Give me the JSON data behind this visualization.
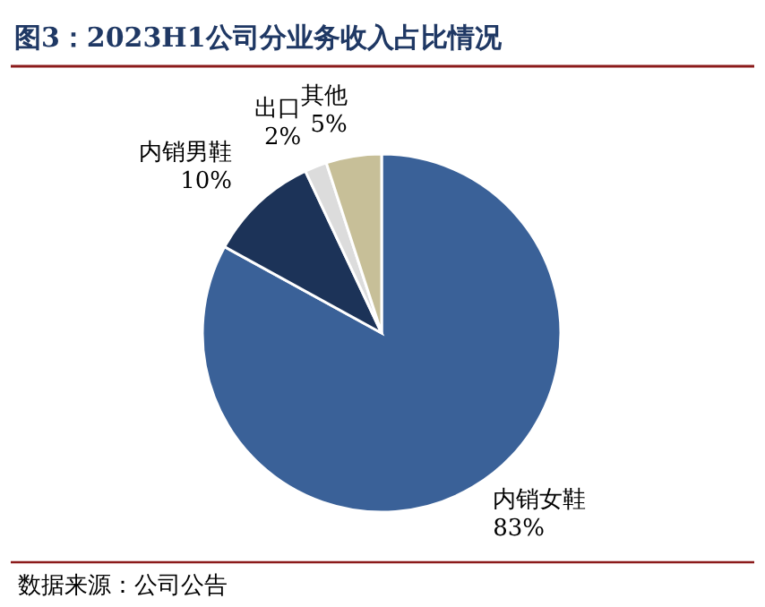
{
  "chart_data": {
    "type": "pie",
    "title": "图3：2023H1公司分业务收入占比情况",
    "categories": [
      "内销女鞋",
      "内销男鞋",
      "出口",
      "其他"
    ],
    "values": [
      83,
      10,
      2,
      5
    ],
    "colors": [
      "#3a6198",
      "#1c3358",
      "#dcdcdc",
      "#c7bf98"
    ],
    "value_labels": [
      "83%",
      "10%",
      "2%",
      "5%"
    ],
    "annotations": [
      "数据来源：公司公告"
    ]
  }
}
